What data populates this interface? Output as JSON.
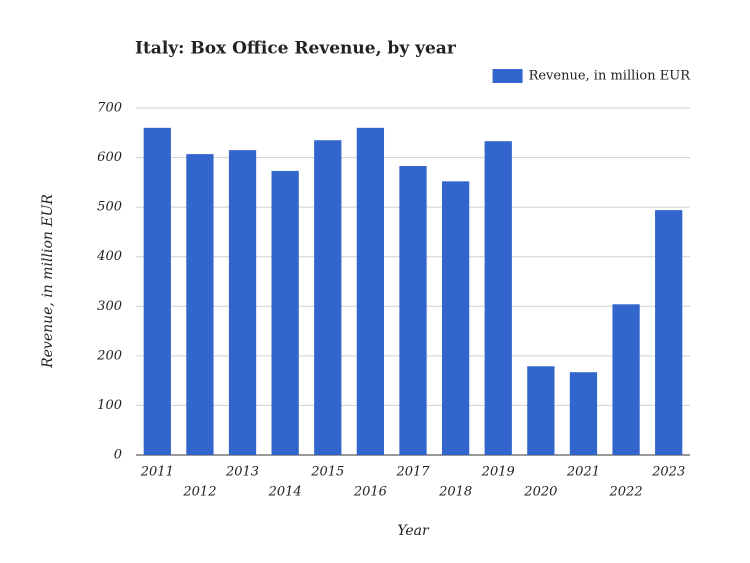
{
  "chart_data": {
    "type": "bar",
    "title": "Italy: Box Office Revenue, by year",
    "x_label": "Year",
    "y_label": "Revenue, in million EUR",
    "categories": [
      "2011",
      "2012",
      "2013",
      "2014",
      "2015",
      "2016",
      "2017",
      "2018",
      "2019",
      "2020",
      "2021",
      "2022",
      "2023"
    ],
    "series": [
      {
        "name": "Revenue, in million EUR",
        "color": "#3366cc",
        "values": [
          660,
          607,
          615,
          573,
          635,
          660,
          583,
          552,
          633,
          179,
          167,
          304,
          494
        ]
      }
    ],
    "ylim": [
      0,
      700
    ],
    "yticks": [
      0,
      100,
      200,
      300,
      400,
      500,
      600,
      700
    ],
    "grid": true,
    "legend": "top-right"
  }
}
